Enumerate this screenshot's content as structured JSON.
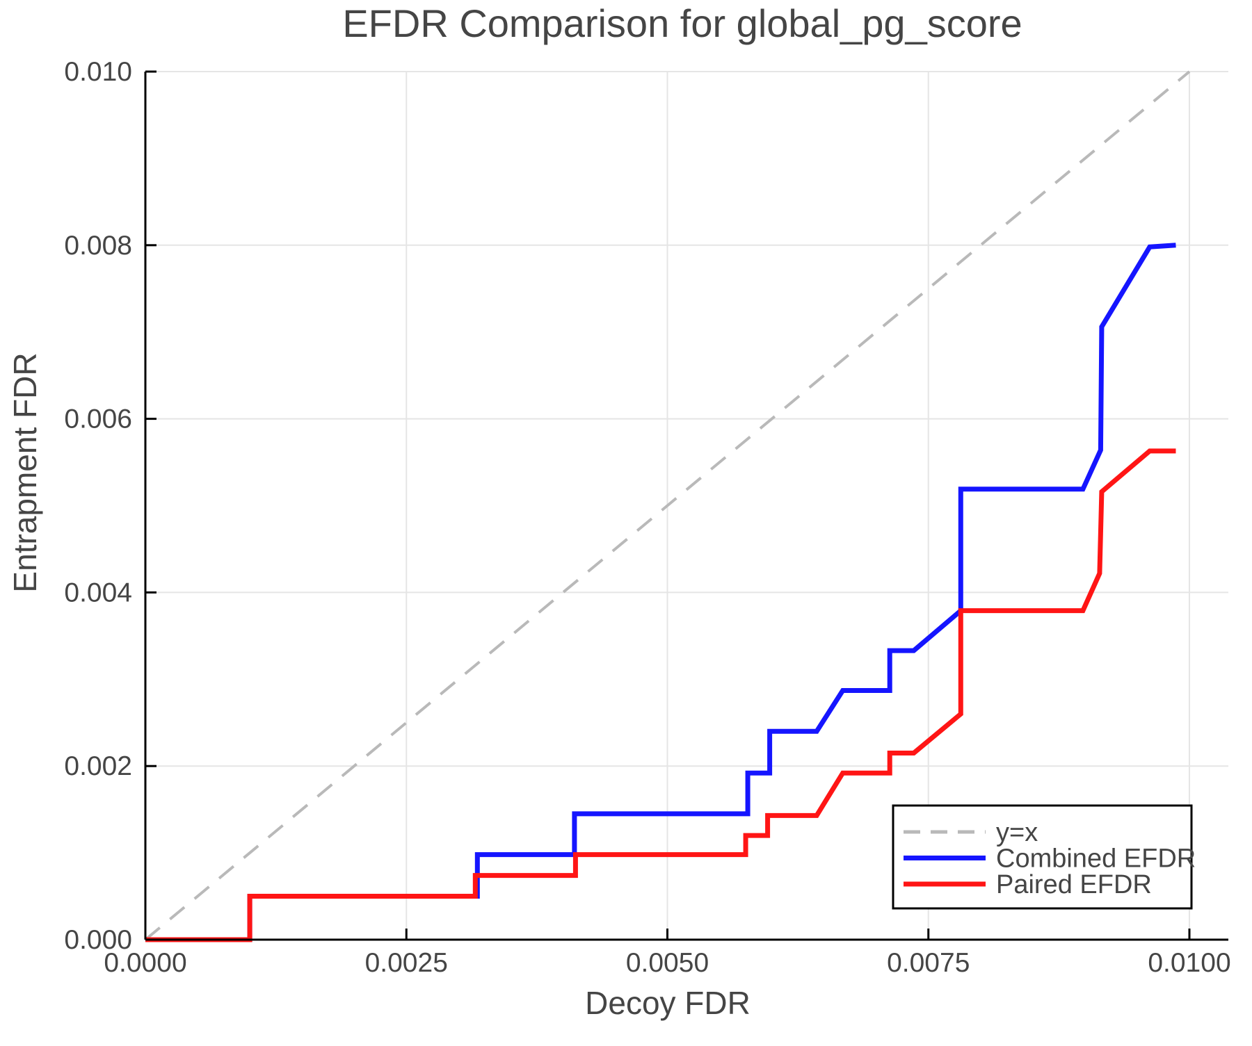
{
  "chart_data": {
    "type": "line",
    "title": "EFDR Comparison for global_pg_score",
    "xlabel": "Decoy FDR",
    "ylabel": "Entrapment FDR",
    "xlim": [
      0.0,
      0.01
    ],
    "ylim": [
      0.0,
      0.01
    ],
    "grid": true,
    "legend_position": "lower right",
    "x_axis": {
      "ticks": [
        {
          "value": 0.0,
          "label": "0.0000"
        },
        {
          "value": 0.0025,
          "label": "0.0025"
        },
        {
          "value": 0.005,
          "label": "0.0050"
        },
        {
          "value": 0.0075,
          "label": "0.0075"
        },
        {
          "value": 0.01,
          "label": "0.0100"
        }
      ]
    },
    "y_axis": {
      "ticks": [
        {
          "value": 0.0,
          "label": "0.000"
        },
        {
          "value": 0.002,
          "label": "0.002"
        },
        {
          "value": 0.004,
          "label": "0.004"
        },
        {
          "value": 0.006,
          "label": "0.006"
        },
        {
          "value": 0.008,
          "label": "0.008"
        },
        {
          "value": 0.01,
          "label": "0.010"
        }
      ]
    },
    "series": [
      {
        "name": "y=x",
        "color": "#b9b9b9",
        "style": "dashed",
        "width": 4,
        "points": [
          [
            0.0,
            0.0
          ],
          [
            0.01,
            0.01
          ]
        ]
      },
      {
        "name": "Combined EFDR",
        "color": "#1515ff",
        "style": "solid",
        "width": 7,
        "points": [
          [
            0.0,
            0.0
          ],
          [
            0.001,
            0.0
          ],
          [
            0.001,
            0.0005
          ],
          [
            0.00318,
            0.0005
          ],
          [
            0.00318,
            0.00098
          ],
          [
            0.00411,
            0.00098
          ],
          [
            0.00411,
            0.00145
          ],
          [
            0.00577,
            0.00145
          ],
          [
            0.00577,
            0.00192
          ],
          [
            0.00598,
            0.00192
          ],
          [
            0.00598,
            0.0024
          ],
          [
            0.00643,
            0.0024
          ],
          [
            0.00668,
            0.00287
          ],
          [
            0.00713,
            0.00287
          ],
          [
            0.00713,
            0.00333
          ],
          [
            0.00736,
            0.00333
          ],
          [
            0.00781,
            0.00379
          ],
          [
            0.00781,
            0.00519
          ],
          [
            0.00898,
            0.00519
          ],
          [
            0.00915,
            0.00564
          ],
          [
            0.00916,
            0.00706
          ],
          [
            0.00962,
            0.00798
          ],
          [
            0.00987,
            0.008
          ]
        ]
      },
      {
        "name": "Paired EFDR",
        "color": "#ff1515",
        "style": "solid",
        "width": 7,
        "points": [
          [
            0.0,
            0.0
          ],
          [
            0.001,
            0.0
          ],
          [
            0.001,
            0.0005
          ],
          [
            0.00316,
            0.0005
          ],
          [
            0.00316,
            0.00074
          ],
          [
            0.00412,
            0.00074
          ],
          [
            0.00412,
            0.00098
          ],
          [
            0.00575,
            0.00098
          ],
          [
            0.00575,
            0.0012
          ],
          [
            0.00596,
            0.0012
          ],
          [
            0.00596,
            0.00143
          ],
          [
            0.00643,
            0.00143
          ],
          [
            0.00668,
            0.00192
          ],
          [
            0.00713,
            0.00192
          ],
          [
            0.00713,
            0.00215
          ],
          [
            0.00736,
            0.00215
          ],
          [
            0.00781,
            0.0026
          ],
          [
            0.00781,
            0.00379
          ],
          [
            0.00898,
            0.00379
          ],
          [
            0.00914,
            0.00422
          ],
          [
            0.00916,
            0.00516
          ],
          [
            0.00962,
            0.00563
          ],
          [
            0.00987,
            0.00563
          ]
        ]
      }
    ]
  },
  "legend": {
    "items": [
      {
        "label": "y=x",
        "color": "#b9b9b9",
        "dashed": true
      },
      {
        "label": "Combined EFDR",
        "color": "#1515ff",
        "dashed": false
      },
      {
        "label": "Paired EFDR",
        "color": "#ff1515",
        "dashed": false
      }
    ]
  },
  "colors": {
    "background": "#ffffff",
    "axis": "#000000",
    "grid": "#e5e5e5",
    "text": "#454545",
    "legend_border": "#000000"
  }
}
